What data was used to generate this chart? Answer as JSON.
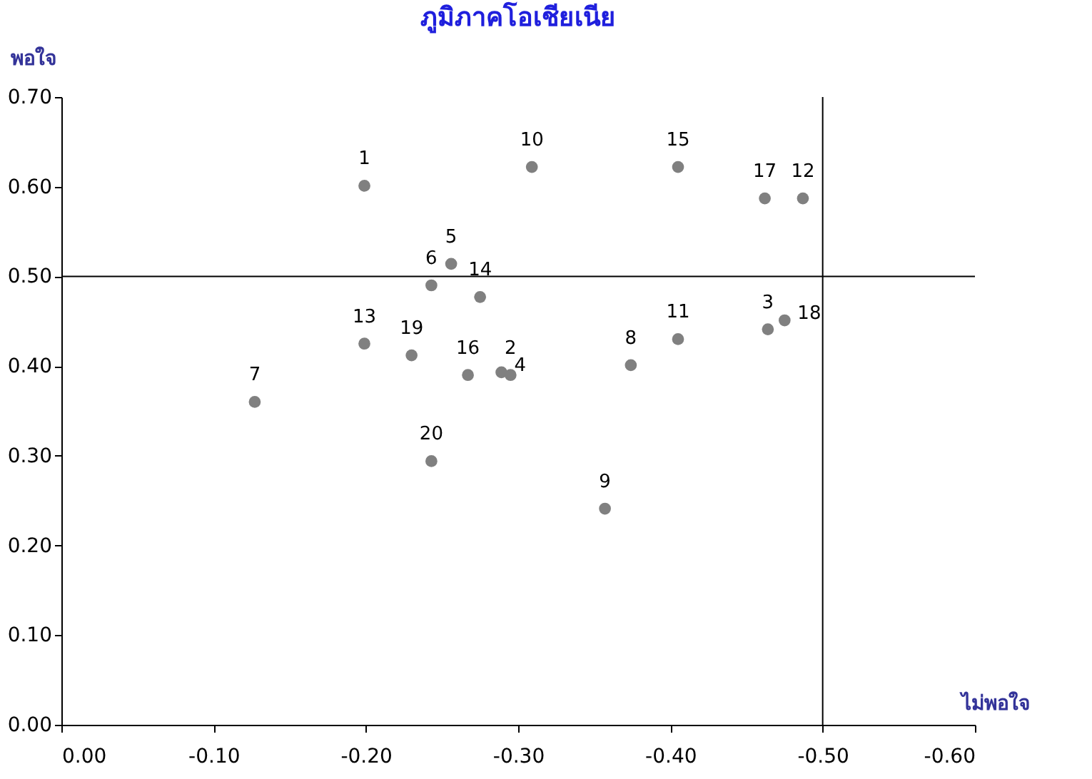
{
  "chart_data": {
    "type": "scatter",
    "title": "ภูมิภาคโอเชียเนีย",
    "xlabel": "ไม่พอใจ",
    "ylabel": "พอใจ",
    "x": [
      -0.199,
      -0.295,
      -0.464,
      -0.289,
      -0.256,
      -0.243,
      -0.127,
      -0.374,
      -0.357,
      -0.309,
      -0.405,
      -0.487,
      -0.199,
      -0.275,
      -0.405,
      -0.267,
      -0.462,
      -0.475,
      -0.23,
      -0.243
    ],
    "series": [
      {
        "color": "#808080",
        "values": [
          0.601,
          0.39,
          0.441,
          0.393,
          0.514,
          0.49,
          0.36,
          0.401,
          0.241,
          0.622,
          0.43,
          0.587,
          0.425,
          0.477,
          0.622,
          0.39,
          0.587,
          0.451,
          0.412,
          0.294
        ]
      }
    ],
    "annotations": [
      {
        "text": "1",
        "x": -0.199,
        "y": 0.601
      },
      {
        "text": "2",
        "x": -0.295,
        "y": 0.39
      },
      {
        "text": "3",
        "x": -0.464,
        "y": 0.441
      },
      {
        "text": "4",
        "x": -0.289,
        "y": 0.393
      },
      {
        "text": "5",
        "x": -0.256,
        "y": 0.514
      },
      {
        "text": "6",
        "x": -0.243,
        "y": 0.49
      },
      {
        "text": "7",
        "x": -0.127,
        "y": 0.36
      },
      {
        "text": "8",
        "x": -0.374,
        "y": 0.401
      },
      {
        "text": "9",
        "x": -0.357,
        "y": 0.241
      },
      {
        "text": "10",
        "x": -0.309,
        "y": 0.622
      },
      {
        "text": "11",
        "x": -0.405,
        "y": 0.43
      },
      {
        "text": "12",
        "x": -0.487,
        "y": 0.587
      },
      {
        "text": "13",
        "x": -0.199,
        "y": 0.425
      },
      {
        "text": "14",
        "x": -0.275,
        "y": 0.477
      },
      {
        "text": "15",
        "x": -0.405,
        "y": 0.622
      },
      {
        "text": "16",
        "x": -0.267,
        "y": 0.39
      },
      {
        "text": "17",
        "x": -0.462,
        "y": 0.587
      },
      {
        "text": "18",
        "x": -0.475,
        "y": 0.451
      },
      {
        "text": "19",
        "x": -0.23,
        "y": 0.412
      },
      {
        "text": "20",
        "x": -0.243,
        "y": 0.294
      }
    ],
    "xlim": [
      0,
      -0.6
    ],
    "xticks": [
      {
        "value": 0,
        "label": "0.00"
      },
      {
        "value": -0.1,
        "label": "-0.10"
      },
      {
        "value": -0.2,
        "label": "-0.20"
      },
      {
        "value": -0.3,
        "label": "-0.30"
      },
      {
        "value": -0.4,
        "label": "-0.40"
      },
      {
        "value": -0.5,
        "label": "-0.50"
      },
      {
        "value": -0.6,
        "label": "-0.60"
      }
    ],
    "ylim": [
      0,
      0.7
    ],
    "yticks": [
      {
        "value": 0,
        "label": "0.00"
      },
      {
        "value": 0.1,
        "label": "0.10"
      },
      {
        "value": 0.2,
        "label": "0.20"
      },
      {
        "value": 0.3,
        "label": "0.30"
      },
      {
        "value": 0.4,
        "label": "0.40"
      },
      {
        "value": 0.5,
        "label": "0.50"
      },
      {
        "value": 0.6,
        "label": "0.60"
      },
      {
        "value": 0.7,
        "label": "0.70"
      }
    ],
    "ref_lines": [
      {
        "axis": "x",
        "value": -0.5
      },
      {
        "axis": "y",
        "value": 0.5
      }
    ],
    "marker": "circle"
  }
}
